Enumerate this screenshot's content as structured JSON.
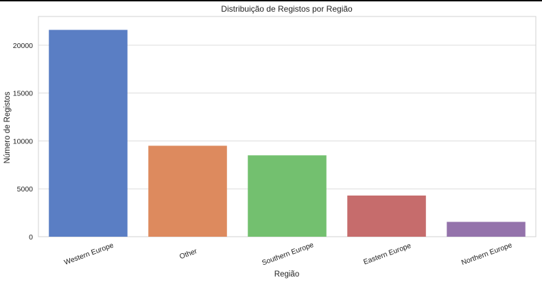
{
  "chart_data": {
    "type": "bar",
    "title": "Distribuição de Registos por Região",
    "xlabel": "Região",
    "ylabel": "Número de Registos",
    "categories": [
      "Western Europe",
      "Other",
      "Southern Europe",
      "Eastern Europe",
      "Northern Europe"
    ],
    "values": [
      21600,
      9500,
      8500,
      4300,
      1550
    ],
    "ylim": [
      0,
      23000
    ],
    "yticks": [
      0,
      5000,
      10000,
      15000,
      20000
    ],
    "colors": [
      "#5a7ec4",
      "#dd8a5e",
      "#73c06f",
      "#c66c6c",
      "#9473ab"
    ],
    "grid": true,
    "legend": "none"
  }
}
